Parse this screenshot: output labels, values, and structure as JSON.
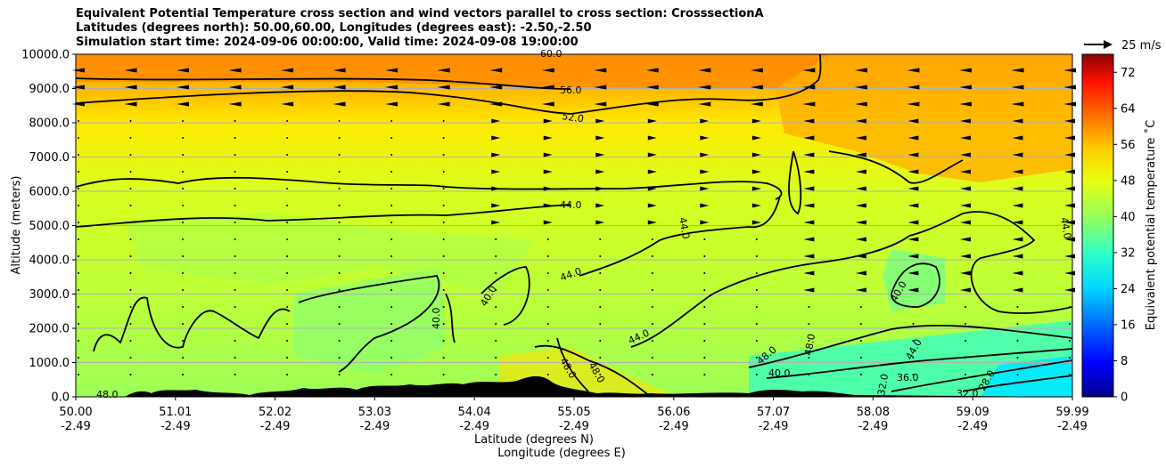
{
  "title": {
    "line1": "Equivalent Potential Temperature cross section and wind vectors parallel to cross section: CrosssectionA",
    "line2": "Latitudes (degrees north): 50.00,60.00, Longitudes (degrees east): -2.50,-2.50",
    "line3": "Simulation start time: 2024-09-06 00:00:00, Valid time: 2024-09-08 19:00:00"
  },
  "chart_data": {
    "type": "heatmap",
    "variable": "Equivalent potential temperature",
    "ylabel": "Altitude (meters)",
    "xlabel_lat": "Latitude (degrees N)",
    "xlabel_lon": "Longitude (degrees E)",
    "ylim": [
      0,
      10000
    ],
    "yticks": [
      "0.0",
      "1000.0",
      "2000.0",
      "3000.0",
      "4000.0",
      "5000.0",
      "6000.0",
      "7000.0",
      "8000.0",
      "9000.0",
      "10000.0"
    ],
    "xticks_lat": [
      "50.00",
      "51.01",
      "52.02",
      "53.03",
      "54.04",
      "55.05",
      "56.06",
      "57.07",
      "58.08",
      "59.09",
      "59.99"
    ],
    "xticks_lon": [
      "-2.49",
      "-2.49",
      "-2.49",
      "-2.49",
      "-2.49",
      "-2.49",
      "-2.49",
      "-2.49",
      "-2.49",
      "-2.49",
      "-2.49"
    ],
    "colorbar": {
      "label": "Equivalent potential temperature ˚C",
      "range": [
        0,
        76
      ],
      "ticks": [
        "0",
        "8",
        "16",
        "24",
        "32",
        "40",
        "48",
        "56",
        "64",
        "72"
      ]
    },
    "wind_reference": "25 m/s",
    "grid": true,
    "contour_labels": [
      "60.0",
      "56.0",
      "52.0",
      "44.0",
      "44.0",
      "44.0",
      "44.0",
      "40.0",
      "40.0",
      "40.0",
      "44.0",
      "48.0",
      "48.0",
      "40.0",
      "44.0",
      "36.0",
      "32.0",
      "32.0",
      "28.0",
      "48.0",
      "48.0",
      "48.0"
    ]
  }
}
